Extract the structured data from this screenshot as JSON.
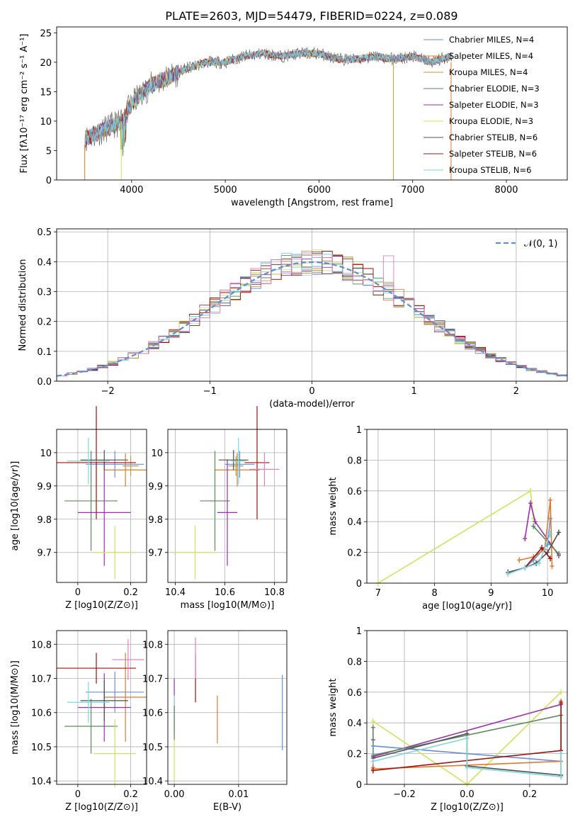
{
  "figure": {
    "title": "PLATE=2603, MJD=54479, FIBERID=0224, z=0.089"
  },
  "colors": {
    "chabrier_miles": "#6a8fd8",
    "salpeter_miles": "#e0792e",
    "kroupa_miles": "#c49a3a",
    "chabrier_elodie": "#5a8a5a",
    "salpeter_elodie": "#9b2fb0",
    "kroupa_elodie": "#cde55a",
    "chabrier_stelib": "#505050",
    "salpeter_stelib": "#a01010",
    "kroupa_stelib": "#7fd7de",
    "salpeter_stelib_light": "#e67fbf"
  },
  "chart_data": [
    {
      "id": "spectrum",
      "type": "line",
      "xlabel": "wavelength [Angstrom, rest frame]",
      "ylabel": "Flux [f",
      "ylabel_full": "Flux [fλ10⁻¹⁷ erg cm⁻² s⁻¹ A⁻¹]",
      "xlim": [
        3200,
        8650
      ],
      "ylim": [
        0,
        26
      ],
      "xticks": [
        4000,
        5000,
        6000,
        7000,
        8000
      ],
      "yticks": [
        0,
        5,
        10,
        15,
        20,
        25
      ],
      "legend_loc": "right",
      "legend": [
        "Chabrier MILES, N_SSP=4",
        "Salpeter MILES, N_SSP=4",
        "Kroupa MILES, N_SSP=4",
        "Chabrier ELODIE, N_SSP=3",
        "Salpeter ELODIE, N_SSP=3",
        "Kroupa ELODIE, N_SSP=3",
        "Chabrier STELIB, N_SSP=6",
        "Salpeter STELIB, N_SSP=6",
        "Kroupa STELIB, N_SSP=6"
      ],
      "legend_keys": [
        "chabrier_miles",
        "salpeter_miles",
        "kroupa_miles",
        "chabrier_elodie",
        "salpeter_elodie",
        "kroupa_elodie",
        "chabrier_stelib",
        "salpeter_stelib",
        "kroupa_stelib"
      ],
      "continuum": {
        "x": [
          3500,
          3700,
          3900,
          4000,
          4200,
          4400,
          4600,
          4800,
          5000,
          5200,
          5400,
          5600,
          5800,
          6000,
          6200,
          6400,
          6600,
          6800,
          7000,
          7200,
          7400
        ],
        "y": [
          7,
          8.5,
          10,
          13,
          16,
          17.5,
          19,
          20,
          20,
          21,
          21.5,
          21,
          21.5,
          21.5,
          20.5,
          20.5,
          21,
          20.5,
          21,
          20,
          21
        ]
      }
    },
    {
      "id": "residual_hist",
      "type": "histogram",
      "xlabel": "(data-model)/error",
      "ylabel": "Normed distribution",
      "xlim": [
        -2.5,
        2.5
      ],
      "ylim": [
        0,
        0.51
      ],
      "xticks": [
        -2,
        -1,
        0,
        1,
        2
      ],
      "xtick_labels": [
        "−2",
        "−1",
        "0",
        "1",
        "2"
      ],
      "yticks": [
        0.0,
        0.1,
        0.2,
        0.3,
        0.4,
        0.5
      ],
      "ytick_labels": [
        "0.0",
        "0.1",
        "0.2",
        "0.3",
        "0.4",
        "0.5"
      ],
      "legend": [
        "𝒩(0, 1)"
      ],
      "legend_loc": "upper right",
      "bin_width": 0.1
    },
    {
      "id": "age_vs_Z",
      "type": "errorbar",
      "xlabel": "Z [log10(Z/Z⊙)]",
      "ylabel": "age  [log10(age/yr)]",
      "xlim": [
        -0.08,
        0.26
      ],
      "ylim": [
        9.61,
        10.07
      ],
      "xticks": [
        0.0,
        0.2
      ],
      "yticks": [
        9.7,
        9.8,
        9.9,
        10.0
      ],
      "points": [
        {
          "k": "chabrier_miles",
          "x": 0.14,
          "xe": 0.11,
          "y": 9.965,
          "ye": 0.04
        },
        {
          "k": "salpeter_miles",
          "x": 0.18,
          "xe": 0.08,
          "y": 9.948,
          "ye": 0.05
        },
        {
          "k": "kroupa_miles",
          "x": 0.2,
          "xe": 0.03,
          "y": 9.96,
          "ye": 0.03
        },
        {
          "k": "chabrier_elodie",
          "x": 0.05,
          "xe": 0.1,
          "y": 9.855,
          "ye": 0.15
        },
        {
          "k": "salpeter_elodie",
          "x": 0.1,
          "xe": 0.1,
          "y": 9.82,
          "ye": 0.16
        },
        {
          "k": "kroupa_elodie",
          "x": 0.14,
          "xe": 0.08,
          "y": 9.7,
          "ye": 0.08
        },
        {
          "k": "chabrier_stelib",
          "x": 0.1,
          "xe": 0.09,
          "y": 9.978,
          "ye": 0.03
        },
        {
          "k": "salpeter_stelib",
          "x": 0.07,
          "xe": 0.15,
          "y": 9.97,
          "ye": 0.17
        },
        {
          "k": "kroupa_stelib",
          "x": 0.04,
          "xe": 0.08,
          "y": 9.975,
          "ye": 0.07
        }
      ]
    },
    {
      "id": "age_vs_mass",
      "type": "errorbar",
      "xlabel": "mass [log10(M/M⊙)]",
      "xlim": [
        10.37,
        10.85
      ],
      "ylim": [
        9.61,
        10.07
      ],
      "xticks": [
        10.4,
        10.6,
        10.8
      ],
      "yticks": [
        9.7,
        9.8,
        9.9,
        10.0
      ],
      "points": [
        {
          "k": "chabrier_miles",
          "x": 10.66,
          "xe": 0.06,
          "y": 9.965,
          "ye": 0.04
        },
        {
          "k": "salpeter_miles",
          "x": 10.65,
          "xe": 0.09,
          "y": 9.948,
          "ye": 0.05
        },
        {
          "k": "kroupa_miles",
          "x": 10.645,
          "xe": 0.03,
          "y": 9.96,
          "ye": 0.03
        },
        {
          "k": "chabrier_elodie",
          "x": 10.56,
          "xe": 0.06,
          "y": 9.855,
          "ye": 0.15
        },
        {
          "k": "salpeter_elodie",
          "x": 10.61,
          "xe": 0.04,
          "y": 9.82,
          "ye": 0.16
        },
        {
          "k": "kroupa_elodie",
          "x": 10.48,
          "xe": 0.09,
          "y": 9.7,
          "ye": 0.08
        },
        {
          "k": "chabrier_stelib",
          "x": 10.635,
          "xe": 0.06,
          "y": 9.978,
          "ye": 0.03
        },
        {
          "k": "salpeter_stelib",
          "x": 10.73,
          "xe": 0.05,
          "y": 9.97,
          "ye": 0.17
        },
        {
          "k": "kroupa_stelib",
          "x": 10.655,
          "xe": 0.03,
          "y": 9.975,
          "ye": 0.07
        },
        {
          "k": "salpeter_stelib_light",
          "x": 10.76,
          "xe": 0.06,
          "y": 9.95,
          "ye": 0.05
        }
      ]
    },
    {
      "id": "weight_vs_age",
      "type": "line",
      "xlabel": "age  [log10(age/yr)]",
      "ylabel": "mass weight",
      "xlim": [
        6.8,
        10.35
      ],
      "ylim": [
        0,
        1
      ],
      "xticks": [
        7,
        8,
        9,
        10
      ],
      "yticks": [
        0.0,
        0.2,
        0.4,
        0.6,
        0.8,
        1.0
      ],
      "series": [
        {
          "k": "kroupa_elodie",
          "x": [
            7.0,
            9.7,
            9.75
          ],
          "y": [
            0.0,
            0.6,
            0.42
          ]
        },
        {
          "k": "salpeter_elodie",
          "x": [
            9.6,
            9.7,
            9.78,
            10.2
          ],
          "y": [
            0.29,
            0.52,
            0.4,
            0.18
          ]
        },
        {
          "k": "chabrier_elodie",
          "x": [
            9.75,
            10.2
          ],
          "y": [
            0.37,
            0.19
          ]
        },
        {
          "k": "chabrier_miles",
          "x": [
            9.3,
            9.6,
            9.75,
            10.0,
            10.05
          ],
          "y": [
            0.07,
            0.1,
            0.15,
            0.25,
            0.42
          ]
        },
        {
          "k": "salpeter_miles",
          "x": [
            9.5,
            9.75,
            9.95,
            10.05,
            10.08
          ],
          "y": [
            0.15,
            0.17,
            0.22,
            0.54,
            0.11
          ]
        },
        {
          "k": "chabrier_stelib",
          "x": [
            9.3,
            9.6,
            9.8,
            10.0,
            10.2
          ],
          "y": [
            0.07,
            0.1,
            0.13,
            0.2,
            0.33
          ]
        },
        {
          "k": "salpeter_stelib",
          "x": [
            9.6,
            9.9,
            10.05
          ],
          "y": [
            0.1,
            0.23,
            0.16
          ]
        },
        {
          "k": "kroupa_stelib",
          "x": [
            9.3,
            9.6,
            9.85,
            10.05
          ],
          "y": [
            0.06,
            0.1,
            0.13,
            0.32
          ]
        }
      ]
    },
    {
      "id": "mass_vs_Z",
      "type": "errorbar",
      "xlabel": "Z [log10(Z/Z⊙)]",
      "ylabel": "mass [log10(M/M⊙)]",
      "xlim": [
        -0.08,
        0.26
      ],
      "ylim": [
        10.39,
        10.84
      ],
      "xticks": [
        0.0,
        0.2
      ],
      "yticks": [
        10.4,
        10.5,
        10.6,
        10.7,
        10.8
      ],
      "points": [
        {
          "k": "chabrier_miles",
          "x": 0.14,
          "xe": 0.11,
          "y": 10.66,
          "ye": 0.06
        },
        {
          "k": "salpeter_miles",
          "x": 0.18,
          "xe": 0.08,
          "y": 10.645,
          "ye": 0.13
        },
        {
          "k": "chabrier_elodie",
          "x": 0.05,
          "xe": 0.1,
          "y": 10.56,
          "ye": 0.08
        },
        {
          "k": "salpeter_elodie",
          "x": 0.1,
          "xe": 0.1,
          "y": 10.615,
          "ye": 0.1
        },
        {
          "k": "kroupa_elodie",
          "x": 0.14,
          "xe": 0.08,
          "y": 10.48,
          "ye": 0.1
        },
        {
          "k": "chabrier_stelib",
          "x": 0.1,
          "xe": 0.09,
          "y": 10.635,
          "ye": 0.06
        },
        {
          "k": "salpeter_stelib",
          "x": 0.07,
          "xe": 0.15,
          "y": 10.73,
          "ye": 0.045
        },
        {
          "k": "kroupa_stelib",
          "x": 0.04,
          "xe": 0.08,
          "y": 10.63,
          "ye": 0.06
        },
        {
          "k": "salpeter_stelib_light",
          "x": 0.19,
          "xe": 0.06,
          "y": 10.755,
          "ye": 0.06
        }
      ]
    },
    {
      "id": "mass_vs_EBV",
      "type": "errorbar",
      "xlabel": "E(B-V)",
      "xlim": [
        -0.001,
        0.0175
      ],
      "ylim": [
        10.39,
        10.84
      ],
      "xticks": [
        0.0,
        0.01
      ],
      "xtick_labels": [
        "0.00",
        "0.01"
      ],
      "yticks": [
        10.4,
        10.5,
        10.6,
        10.7,
        10.8
      ],
      "points": [
        {
          "k": "chabrier_miles",
          "x": 0.0168,
          "xe": 0,
          "y": 10.6,
          "ye": 0.11
        },
        {
          "k": "salpeter_miles",
          "x": 0.0067,
          "xe": 0,
          "y": 10.58,
          "ye": 0.07
        },
        {
          "k": "salpeter_stelib",
          "x": 0.0033,
          "xe": 0,
          "y": 10.7,
          "ye": 0.07
        },
        {
          "k": "salpeter_stelib_light",
          "x": 0.0033,
          "xe": 0,
          "y": 10.76,
          "ye": 0.06
        },
        {
          "k": "salpeter_elodie",
          "x": 0.0,
          "xe": 0,
          "y": 10.62,
          "ye": 0.08
        },
        {
          "k": "kroupa_elodie",
          "x": 0.0,
          "xe": 0,
          "y": 10.48,
          "ye": 0.08
        },
        {
          "k": "kroupa_stelib",
          "x": 0.0,
          "xe": 0,
          "y": 10.6,
          "ye": 0.05
        },
        {
          "k": "chabrier_elodie",
          "x": 0.0,
          "xe": 0,
          "y": 10.57,
          "ye": 0.05
        }
      ]
    },
    {
      "id": "weight_vs_Z",
      "type": "line",
      "xlabel": "Z [log10(Z/Z⊙)]",
      "ylabel": "mass weight",
      "xlim": [
        -0.32,
        0.32
      ],
      "ylim": [
        0,
        1
      ],
      "xticks": [
        -0.2,
        0.0,
        0.2
      ],
      "xtick_labels": [
        "−0.2",
        "0.0",
        "0.2"
      ],
      "yticks": [
        0.0,
        0.2,
        0.4,
        0.6,
        0.8,
        1.0
      ],
      "series": [
        {
          "k": "kroupa_elodie",
          "x": [
            -0.3,
            0.0,
            0.3
          ],
          "y": [
            0.41,
            0.0,
            0.6
          ]
        },
        {
          "k": "salpeter_elodie",
          "x": [
            -0.3,
            -0.3,
            0.3
          ],
          "y": [
            0.29,
            0.18,
            0.52
          ]
        },
        {
          "k": "chabrier_elodie",
          "x": [
            -0.3,
            -0.3,
            0.3,
            0.3
          ],
          "y": [
            0.37,
            0.19,
            0.45,
            0.06
          ]
        },
        {
          "k": "chabrier_miles",
          "x": [
            -0.3,
            -0.3,
            0.3,
            0.3
          ],
          "y": [
            0.1,
            0.25,
            0.15,
            0.05
          ]
        },
        {
          "k": "salpeter_miles",
          "x": [
            -0.3,
            -0.3,
            0.3,
            0.3
          ],
          "y": [
            0.11,
            0.1,
            0.15,
            0.54
          ]
        },
        {
          "k": "chabrier_stelib",
          "x": [
            -0.3,
            0.0,
            0.0,
            0.3
          ],
          "y": [
            0.17,
            0.33,
            0.12,
            0.06
          ]
        },
        {
          "k": "salpeter_stelib",
          "x": [
            -0.3,
            0.3,
            0.3
          ],
          "y": [
            0.09,
            0.22,
            0.53
          ]
        },
        {
          "k": "kroupa_stelib",
          "x": [
            -0.3,
            0.0,
            0.0,
            0.3,
            0.3
          ],
          "y": [
            0.15,
            0.3,
            0.11,
            0.05,
            0.2
          ]
        }
      ]
    }
  ]
}
